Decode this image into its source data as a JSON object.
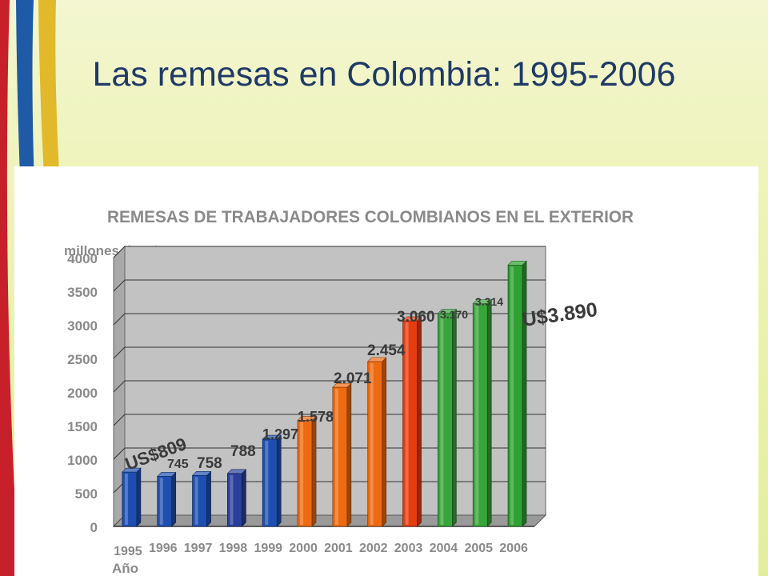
{
  "slide": {
    "title": "Las remesas en Colombia: 1995-2006"
  },
  "chart_data": {
    "type": "bar",
    "title": "REMESAS DE TRABAJADORES COLOMBIANOS EN EL EXTERIOR",
    "ylabel": "millones de U$",
    "xlabel": "Año",
    "ylim": [
      0,
      4000
    ],
    "yticks": [
      "4000",
      "3500",
      "3000",
      "2500",
      "2000",
      "1500",
      "1000",
      "500",
      "0"
    ],
    "categories": [
      "1995",
      "1996",
      "1997",
      "1998",
      "1999",
      "2000",
      "2001",
      "2002",
      "2003",
      "2004",
      "2005",
      "2006"
    ],
    "values": [
      809,
      745,
      758,
      788,
      1297,
      1578,
      2071,
      2454,
      3060,
      3170,
      3314,
      3890
    ],
    "labels": [
      "US$809",
      "745",
      "758",
      "788",
      "1.297",
      "1.578",
      "2.071",
      "2.454",
      "3.060",
      "3.170",
      "3.314",
      "U$3.890"
    ],
    "bar_colors": [
      "#1e4fb0",
      "#1e4fb0",
      "#1e4fb0",
      "#2a3f9a",
      "#1e4fb0",
      "#ee6a10",
      "#ee6a10",
      "#ee6a10",
      "#e53c10",
      "#38a53a",
      "#38a53a",
      "#2fa032"
    ],
    "grid": true,
    "legend": "none"
  },
  "theme": {
    "title_color": "#1f3a66",
    "stripe_colors": [
      "#c8202a",
      "#1f5aa6",
      "#e2b92a"
    ]
  }
}
